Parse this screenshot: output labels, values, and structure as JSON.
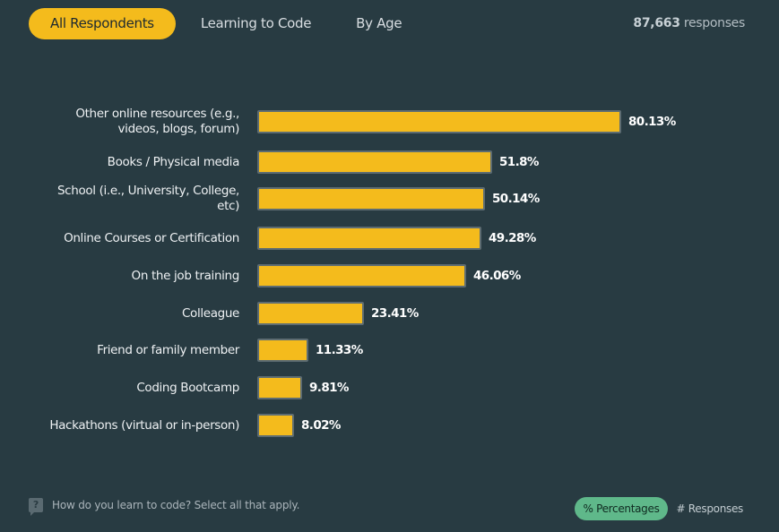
{
  "tabs": [
    {
      "label": "All Respondents",
      "active": true
    },
    {
      "label": "Learning to Code",
      "active": false
    },
    {
      "label": "By Age",
      "active": false
    }
  ],
  "responses": {
    "count": "87,663",
    "label": "responses"
  },
  "chart_data": {
    "type": "bar",
    "orientation": "horizontal",
    "categories": [
      "Other online resources (e.g., videos, blogs, forum)",
      "Books / Physical media",
      "School (i.e., University, College, etc)",
      "Online Courses or Certification",
      "On the job training",
      "Colleague",
      "Friend or family member",
      "Coding Bootcamp",
      "Hackathons (virtual or in-person)"
    ],
    "values": [
      80.13,
      51.8,
      50.14,
      49.28,
      46.06,
      23.41,
      11.33,
      9.81,
      8.02
    ],
    "value_labels": [
      "80.13%",
      "51.8%",
      "50.14%",
      "49.28%",
      "46.06%",
      "23.41%",
      "11.33%",
      "9.81%",
      "8.02%"
    ],
    "unit": "%",
    "bar_color": "#f4bb1c"
  },
  "footer": {
    "question": "How do you learn to code? Select all that apply.",
    "question_icon": "question-icon",
    "toggle_percent": "% Percentages",
    "toggle_count": "# Responses"
  },
  "colors": {
    "background": "#283b42",
    "accent": "#f4bb1c",
    "toggle_active": "#5fb88a"
  }
}
